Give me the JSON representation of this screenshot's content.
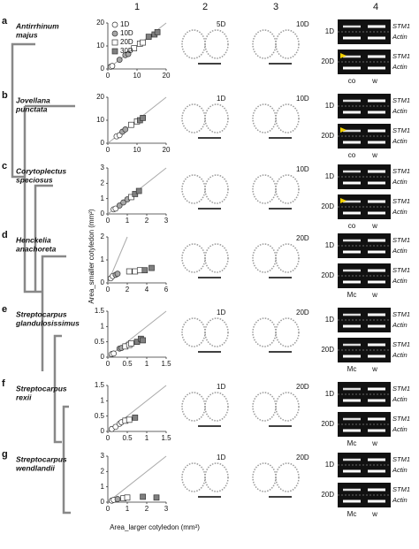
{
  "figure": {
    "column_headers": [
      "1",
      "2",
      "3",
      "4"
    ],
    "y_axis_label": "Area_smaller cotyledon (mm²)",
    "x_axis_label": "Area_larger cotyledon (mm²)",
    "panels": [
      {
        "letter": "a",
        "species": [
          "Antirrhinum",
          "majus"
        ],
        "drawing2_label": "5D",
        "drawing3_label": "10D",
        "gels": [
          {
            "day": "1D",
            "genes": [
              "STM1",
              "Actin"
            ]
          },
          {
            "day": "20D",
            "genes": [
              "STM1",
              "Actin"
            ]
          }
        ],
        "lanes": [
          "co",
          "w"
        ]
      },
      {
        "letter": "b",
        "species": [
          "Jovellana",
          "punctata"
        ],
        "drawing2_label": "1D",
        "drawing3_label": "10D",
        "gels": [
          {
            "day": "1D",
            "genes": [
              "STM1",
              "Actin"
            ]
          },
          {
            "day": "20D",
            "genes": [
              "STM1",
              "Actin"
            ]
          }
        ],
        "lanes": [
          "co",
          "w"
        ]
      },
      {
        "letter": "c",
        "species": [
          "Corytoplectus",
          "speciosus"
        ],
        "drawing3_label": "10D",
        "gels": [
          {
            "day": "1D",
            "genes": [
              "STM1",
              "Actin"
            ]
          },
          {
            "day": "20D",
            "genes": [
              "STM1",
              "Actin"
            ]
          }
        ],
        "lanes": [
          "co",
          "w"
        ]
      },
      {
        "letter": "d",
        "species": [
          "Henckelia",
          "anachoreta"
        ],
        "drawing3_label": "20D",
        "gels": [
          {
            "day": "1D",
            "genes": [
              "STM1",
              "Actin"
            ]
          },
          {
            "day": "20D",
            "genes": [
              "STM1",
              "Actin"
            ]
          }
        ],
        "lanes": [
          "Mc",
          "w"
        ]
      },
      {
        "letter": "e",
        "species": [
          "Streptocarpus",
          "glandulosissimus"
        ],
        "drawing2_label": "1D",
        "drawing3_label": "20D",
        "gels": [
          {
            "day": "1D",
            "genes": [
              "STM1",
              "Actin"
            ]
          },
          {
            "day": "20D",
            "genes": [
              "STM1",
              "Actin"
            ]
          }
        ],
        "lanes": [
          "Mc",
          "w"
        ]
      },
      {
        "letter": "f",
        "species": [
          "Streptocarpus",
          "rexii"
        ],
        "drawing2_label": "1D",
        "drawing3_label": "20D",
        "gels": [
          {
            "day": "1D",
            "genes": [
              "STM1",
              "Actin"
            ]
          },
          {
            "day": "20D",
            "genes": [
              "STM1",
              "Actin"
            ]
          }
        ],
        "lanes": [
          "Mc",
          "w"
        ]
      },
      {
        "letter": "g",
        "species": [
          "Streptocarpus",
          "wendlandii"
        ],
        "drawing2_label": "1D",
        "drawing3_label": "20D",
        "gels": [
          {
            "day": "1D",
            "genes": [
              "STM1",
              "Actin"
            ]
          },
          {
            "day": "20D",
            "genes": [
              "STM1",
              "Actin"
            ]
          }
        ],
        "lanes": [
          "Mc",
          "w"
        ]
      }
    ]
  },
  "chart_data": [
    {
      "type": "scatter",
      "xlim": [
        0,
        20
      ],
      "xticks": [
        0,
        10,
        20
      ],
      "ylim": [
        0,
        20
      ],
      "yticks": [
        0,
        10,
        20
      ],
      "legend": "top-left",
      "series": [
        {
          "name": "1D",
          "marker": "circle",
          "color": "#ffffff",
          "x": [
            1,
            1.5
          ],
          "values": [
            1,
            1.3
          ]
        },
        {
          "name": "10D",
          "marker": "circle",
          "color": "#a6a6a6",
          "x": [
            4,
            6,
            7
          ],
          "values": [
            4,
            6,
            6.5
          ]
        },
        {
          "name": "20D",
          "marker": "square",
          "color": "#ffffff",
          "x": [
            9,
            11,
            12
          ],
          "values": [
            9,
            11,
            11.5
          ]
        },
        {
          "name": "30D",
          "marker": "square",
          "color": "#808080",
          "x": [
            14,
            16,
            17
          ],
          "values": [
            14,
            15,
            16
          ]
        }
      ]
    },
    {
      "type": "scatter",
      "xlim": [
        0,
        20
      ],
      "xticks": [
        0,
        10,
        20
      ],
      "ylim": [
        0,
        20
      ],
      "yticks": [
        0,
        10,
        20
      ],
      "series": [
        {
          "marker": "circle",
          "color": "#ffffff",
          "x": [
            3,
            4
          ],
          "values": [
            3,
            3.5
          ]
        },
        {
          "marker": "circle",
          "color": "#a6a6a6",
          "x": [
            5,
            6
          ],
          "values": [
            5,
            6
          ]
        },
        {
          "marker": "square",
          "color": "#ffffff",
          "x": [
            8,
            10
          ],
          "values": [
            8,
            9.5
          ]
        },
        {
          "marker": "square",
          "color": "#808080",
          "x": [
            11,
            12
          ],
          "values": [
            10,
            11
          ]
        }
      ]
    },
    {
      "type": "scatter",
      "xlim": [
        0,
        3
      ],
      "xticks": [
        0,
        1,
        2,
        3
      ],
      "ylim": [
        0,
        3
      ],
      "yticks": [
        0,
        1,
        2,
        3
      ],
      "series": [
        {
          "marker": "circle",
          "color": "#ffffff",
          "x": [
            0.3,
            0.4
          ],
          "values": [
            0.3,
            0.35
          ]
        },
        {
          "marker": "circle",
          "color": "#a6a6a6",
          "x": [
            0.6,
            0.8,
            1.0
          ],
          "values": [
            0.55,
            0.75,
            0.95
          ]
        },
        {
          "marker": "square",
          "color": "#ffffff",
          "x": [
            1.2
          ],
          "values": [
            1.1
          ]
        },
        {
          "marker": "square",
          "color": "#808080",
          "x": [
            1.4,
            1.6
          ],
          "values": [
            1.3,
            1.5
          ]
        }
      ]
    },
    {
      "type": "scatter",
      "xlim": [
        0,
        6
      ],
      "xticks": [
        0,
        2,
        4,
        6
      ],
      "ylim": [
        0,
        2
      ],
      "yticks": [
        0,
        1,
        2
      ],
      "series": [
        {
          "marker": "circle",
          "color": "#ffffff",
          "x": [
            0.3,
            0.5
          ],
          "values": [
            0.2,
            0.3
          ]
        },
        {
          "marker": "circle",
          "color": "#a6a6a6",
          "x": [
            0.8,
            1.0
          ],
          "values": [
            0.35,
            0.4
          ]
        },
        {
          "marker": "square",
          "color": "#ffffff",
          "x": [
            2.2,
            2.8,
            3.3
          ],
          "values": [
            0.5,
            0.5,
            0.55
          ]
        },
        {
          "marker": "square",
          "color": "#808080",
          "x": [
            3.8,
            4.5
          ],
          "values": [
            0.55,
            0.65
          ]
        }
      ]
    },
    {
      "type": "scatter",
      "xlim": [
        0,
        1.5
      ],
      "xticks": [
        0,
        0.5,
        1,
        1.5
      ],
      "ylim": [
        0,
        1.5
      ],
      "yticks": [
        0,
        0.5,
        1,
        1.5
      ],
      "series": [
        {
          "marker": "circle",
          "color": "#ffffff",
          "x": [
            0.1,
            0.15
          ],
          "values": [
            0.1,
            0.12
          ]
        },
        {
          "marker": "circle",
          "color": "#a6a6a6",
          "x": [
            0.3,
            0.35
          ],
          "values": [
            0.28,
            0.3
          ]
        },
        {
          "marker": "square",
          "color": "#ffffff",
          "x": [
            0.45,
            0.55,
            0.6
          ],
          "values": [
            0.35,
            0.4,
            0.45
          ]
        },
        {
          "marker": "square",
          "color": "#808080",
          "x": [
            0.75,
            0.85,
            0.9
          ],
          "values": [
            0.5,
            0.6,
            0.55
          ]
        }
      ]
    },
    {
      "type": "scatter",
      "xlim": [
        0,
        1.5
      ],
      "xticks": [
        0,
        0.5,
        1,
        1.5
      ],
      "ylim": [
        0,
        1.5
      ],
      "yticks": [
        0,
        0.5,
        1,
        1.5
      ],
      "series": [
        {
          "marker": "circle",
          "color": "#ffffff",
          "x": [
            0.1,
            0.2,
            0.3,
            0.35
          ],
          "values": [
            0.08,
            0.15,
            0.25,
            0.3
          ]
        },
        {
          "marker": "square",
          "color": "#ffffff",
          "x": [
            0.45,
            0.55
          ],
          "values": [
            0.35,
            0.38
          ]
        },
        {
          "marker": "square",
          "color": "#808080",
          "x": [
            0.7
          ],
          "values": [
            0.45
          ]
        }
      ]
    },
    {
      "type": "scatter",
      "xlim": [
        0,
        3
      ],
      "xticks": [
        0,
        1,
        2,
        3
      ],
      "ylim": [
        0,
        3
      ],
      "yticks": [
        0,
        1,
        2,
        3
      ],
      "series": [
        {
          "marker": "circle",
          "color": "#ffffff",
          "x": [
            0.2,
            0.3
          ],
          "values": [
            0.1,
            0.15
          ]
        },
        {
          "marker": "circle",
          "color": "#a6a6a6",
          "x": [
            0.5
          ],
          "values": [
            0.2
          ]
        },
        {
          "marker": "square",
          "color": "#ffffff",
          "x": [
            0.8,
            1.0
          ],
          "values": [
            0.25,
            0.3
          ]
        },
        {
          "marker": "square",
          "color": "#808080",
          "x": [
            1.8,
            2.5
          ],
          "values": [
            0.35,
            0.3
          ]
        }
      ]
    }
  ]
}
